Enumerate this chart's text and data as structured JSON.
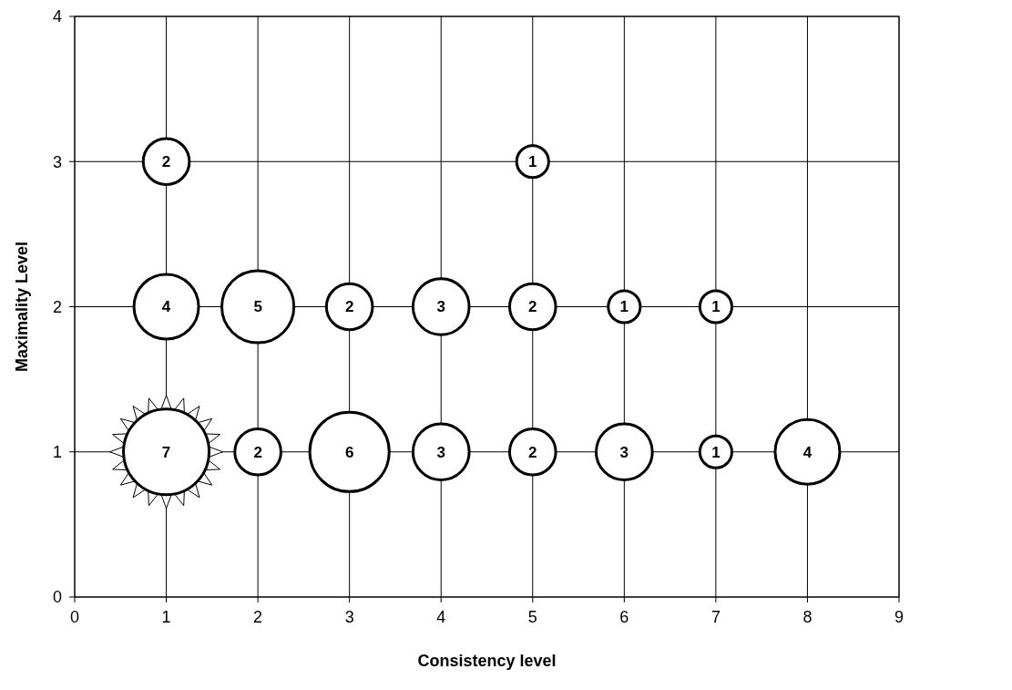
{
  "chart_data": {
    "type": "bubble",
    "xlabel": "Consistency level",
    "ylabel": "Maximality Level",
    "xlim": [
      0,
      9
    ],
    "xticks": [
      0,
      1,
      2,
      3,
      4,
      5,
      6,
      7,
      8,
      9
    ],
    "ylim": [
      0,
      4
    ],
    "yticks": [
      0,
      1,
      2,
      3,
      4
    ],
    "grid": true,
    "series": [
      {
        "color": "#ffffff",
        "x": [
          1,
          5,
          1,
          2,
          3,
          4,
          5,
          6,
          7,
          1,
          2,
          3,
          4,
          5,
          6,
          7,
          8
        ],
        "values": [
          3,
          3,
          2,
          2,
          2,
          2,
          2,
          2,
          2,
          1,
          1,
          1,
          1,
          1,
          1,
          1,
          1
        ],
        "sizes": [
          0.29,
          0.14,
          0.57,
          0.71,
          0.29,
          0.43,
          0.29,
          0.14,
          0.14,
          1,
          0.29,
          0.86,
          0.43,
          0.29,
          0.43,
          0.14,
          0.57
        ]
      }
    ],
    "annotations": [
      {
        "text": "2",
        "x": 1,
        "y": 3
      },
      {
        "text": "1",
        "x": 5,
        "y": 3
      },
      {
        "text": "4",
        "x": 1,
        "y": 2
      },
      {
        "text": "5",
        "x": 2,
        "y": 2
      },
      {
        "text": "2",
        "x": 3,
        "y": 2
      },
      {
        "text": "3",
        "x": 4,
        "y": 2
      },
      {
        "text": "2",
        "x": 5,
        "y": 2
      },
      {
        "text": "1",
        "x": 6,
        "y": 2
      },
      {
        "text": "1",
        "x": 7,
        "y": 2
      },
      {
        "text": "7",
        "x": 1,
        "y": 1
      },
      {
        "text": "2",
        "x": 2,
        "y": 1
      },
      {
        "text": "6",
        "x": 3,
        "y": 1
      },
      {
        "text": "3",
        "x": 4,
        "y": 1
      },
      {
        "text": "2",
        "x": 5,
        "y": 1
      },
      {
        "text": "3",
        "x": 6,
        "y": 1
      },
      {
        "text": "1",
        "x": 7,
        "y": 1
      },
      {
        "text": "4",
        "x": 8,
        "y": 1
      }
    ]
  }
}
